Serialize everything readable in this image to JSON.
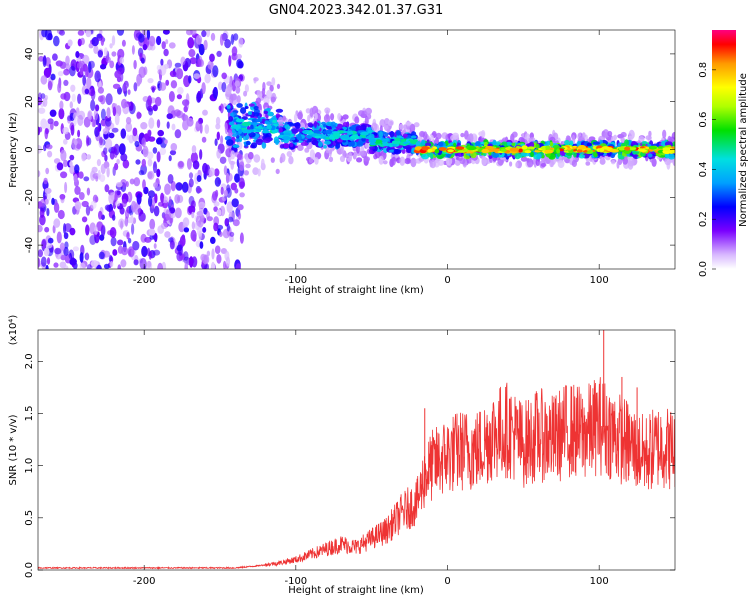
{
  "title": "GN04.2023.342.01.37.G31",
  "chart_data": [
    {
      "type": "heatmap",
      "xlabel": "Height of straight line (km)",
      "ylabel": "Frequency (Hz)",
      "xlim": [
        -270,
        150
      ],
      "ylim": [
        -50,
        50
      ],
      "x_ticks": [
        -200,
        -100,
        0,
        100
      ],
      "y_ticks": [
        -40,
        -20,
        0,
        20,
        40
      ],
      "colorbar": {
        "label": "Normalized spectral amplitude",
        "range": [
          0,
          0.96
        ],
        "ticks": [
          0.0,
          0.2,
          0.4,
          0.6,
          0.8
        ]
      },
      "regions": [
        {
          "x_range": [
            -270,
            -135
          ],
          "freq_range": [
            -50,
            50
          ],
          "level": 0.2
        },
        {
          "x_range": [
            -145,
            -110
          ],
          "freq_center": 10,
          "freq_halfwidth": 9,
          "level": 0.45
        },
        {
          "x_range": [
            -110,
            -50
          ],
          "freq_center": 6,
          "freq_halfwidth": 5,
          "level": 0.45
        },
        {
          "x_range": [
            -50,
            -20
          ],
          "freq_center": 3,
          "freq_halfwidth": 4,
          "level": 0.5
        },
        {
          "x_range": [
            -20,
            150
          ],
          "freq_center": 0,
          "freq_halfwidth": 3,
          "level": 0.85
        }
      ]
    },
    {
      "type": "line",
      "xlabel": "Height of straight line (km)",
      "ylabel": "SNR (10 * v/v)",
      "y_scale_label": "(x10⁴)",
      "xlim": [
        -270,
        150
      ],
      "ylim": [
        0,
        2.3
      ],
      "x_ticks": [
        -200,
        -100,
        0,
        100
      ],
      "y_ticks": [
        0.0,
        0.5,
        1.0,
        1.5,
        2.0
      ],
      "y_tick_labels": [
        "0.0",
        "0.5",
        "1.0",
        "1.5",
        "2.0"
      ],
      "color": "#ee3333",
      "x": [
        -270,
        -200,
        -140,
        -125,
        -110,
        -100,
        -90,
        -80,
        -70,
        -60,
        -50,
        -40,
        -30,
        -25,
        -20,
        -15,
        -10,
        0,
        10,
        20,
        30,
        40,
        50,
        60,
        70,
        80,
        90,
        100,
        110,
        120,
        130,
        140,
        150
      ],
      "y": [
        0.02,
        0.02,
        0.02,
        0.04,
        0.07,
        0.1,
        0.15,
        0.2,
        0.25,
        0.22,
        0.3,
        0.38,
        0.55,
        0.6,
        0.65,
        0.9,
        1.0,
        1.1,
        1.15,
        1.15,
        1.3,
        1.35,
        1.2,
        1.3,
        1.25,
        1.35,
        1.3,
        1.4,
        1.3,
        1.2,
        1.1,
        1.2,
        1.15
      ],
      "spikes": [
        {
          "x": -15,
          "y": 1.55
        },
        {
          "x": 103,
          "y": 2.3
        },
        {
          "x": 115,
          "y": 1.85
        },
        {
          "x": 125,
          "y": 1.75
        }
      ]
    }
  ]
}
